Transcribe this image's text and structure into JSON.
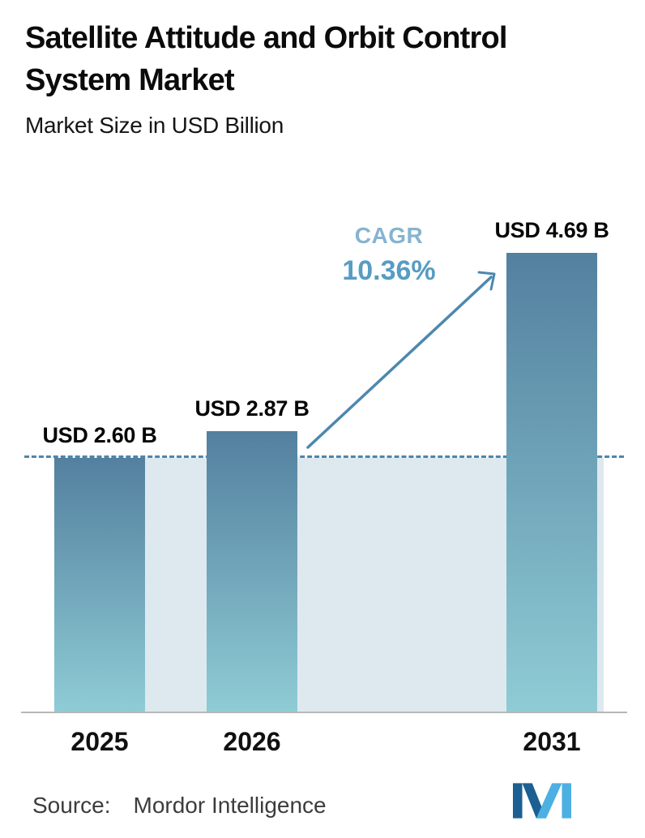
{
  "header": {
    "title_line1": "Satellite Attitude and Orbit Control",
    "title_line2": "System Market",
    "subtitle": "Market Size in USD Billion"
  },
  "chart_data": {
    "type": "bar",
    "title": "Satellite Attitude and Orbit Control System Market",
    "subtitle": "Market Size in USD Billion",
    "unit": "USD Billion",
    "categories": [
      "2025",
      "2026",
      "2031"
    ],
    "values": [
      2.6,
      2.87,
      4.69
    ],
    "bar_labels": [
      "USD 2.60 B",
      "USD 2.87 B",
      "USD 4.69 B"
    ],
    "cagr": {
      "label": "CAGR",
      "value": "10.36%"
    },
    "ylim": [
      0,
      5.2
    ],
    "reference_value": 2.6,
    "grid": false,
    "legend": false
  },
  "footer": {
    "source_label": "Source:",
    "source_value": "Mordor Intelligence",
    "logo": "mordor-intelligence-logo"
  },
  "colors": {
    "bar_top": "#53809f",
    "bar_bottom": "#8fccd5",
    "band": "#dde9ef",
    "dashed": "#4d86ac",
    "arrow": "#4d88ae",
    "accent": "#579cc3",
    "accent_light": "#85b4cf",
    "axis_line": "#b7b7b7",
    "title_text": "#0b0b0b",
    "source_text": "#3c3c3c",
    "logo_dark": "#1c5f92",
    "logo_light": "#4cb0e2"
  }
}
